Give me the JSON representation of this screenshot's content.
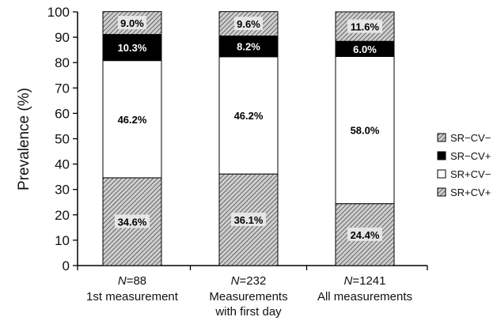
{
  "chart_data": {
    "type": "bar",
    "stacked": true,
    "ylabel": "Prevalence (%)",
    "ylim": [
      0,
      100
    ],
    "yticks": [
      0,
      10,
      20,
      30,
      40,
      50,
      60,
      70,
      80,
      90,
      100
    ],
    "categories": [
      {
        "n_prefix": "N",
        "n_value": "=88",
        "lines": [
          "1st measurement"
        ]
      },
      {
        "n_prefix": "N",
        "n_value": "=232",
        "lines": [
          "Measurements",
          "with first day"
        ]
      },
      {
        "n_prefix": "N",
        "n_value": "=1241",
        "lines": [
          "All measurements"
        ]
      }
    ],
    "series": [
      {
        "name": "SR+CV+",
        "fill": "hatch",
        "values": [
          34.6,
          36.1,
          24.4
        ],
        "labels": [
          "34.6%",
          "36.1%",
          "24.4%"
        ]
      },
      {
        "name": "SR+CV−",
        "fill": "white",
        "values": [
          46.2,
          46.2,
          58.0
        ],
        "labels": [
          "46.2%",
          "46.2%",
          "58.0%"
        ]
      },
      {
        "name": "SR−CV+",
        "fill": "black",
        "values": [
          10.3,
          8.2,
          6.0
        ],
        "labels": [
          "10.3%",
          "8.2%",
          "6.0%"
        ]
      },
      {
        "name": "SR−CV−",
        "fill": "hatch",
        "values": [
          9.0,
          9.6,
          11.6
        ],
        "labels": [
          "9.0%",
          "9.6%",
          "11.6%"
        ]
      }
    ],
    "legend_order": [
      "SR−CV−",
      "SR−CV+",
      "SR+CV−",
      "SR+CV+"
    ],
    "legend_position": "right",
    "grid": false,
    "colors": {
      "hatch_bg": "#d0d0d0",
      "hatch_line": "#555555",
      "black": "#000000",
      "white": "#ffffff"
    }
  }
}
